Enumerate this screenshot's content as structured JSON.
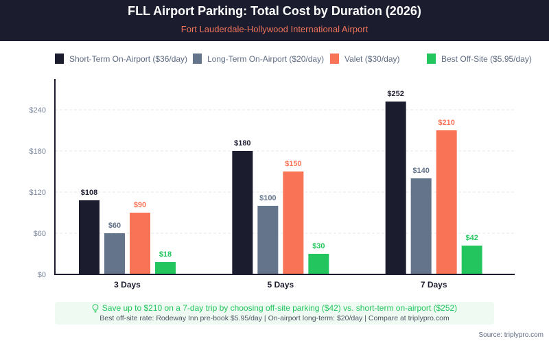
{
  "header": {
    "title": "FLL Airport Parking: Total Cost by Duration (2026)",
    "subtitle": "Fort Lauderdale-Hollywood International Airport"
  },
  "legend": [
    {
      "label": "Short-Term On-Airport ($36/day)",
      "color": "#1b1c2e"
    },
    {
      "label": "Long-Term On-Airport ($20/day)",
      "color": "#64748b"
    },
    {
      "label": "Valet ($30/day)",
      "color": "#f97356"
    },
    {
      "label": "Best Off-Site ($5.95/day)",
      "color": "#22c55e"
    }
  ],
  "chart_data": {
    "type": "bar",
    "title": "FLL Airport Parking: Total Cost by Duration (2026)",
    "subtitle": "Fort Lauderdale-Hollywood International Airport",
    "xlabel": "",
    "ylabel": "",
    "categories": [
      "3 Days",
      "5 Days",
      "7 Days"
    ],
    "series": [
      {
        "name": "Short-Term On-Airport ($36/day)",
        "color": "#1b1c2e",
        "label_color": "#1b1c2e",
        "values": [
          108,
          180,
          252
        ],
        "labels": [
          "$108",
          "$180",
          "$252"
        ]
      },
      {
        "name": "Long-Term On-Airport ($20/day)",
        "color": "#64748b",
        "label_color": "#64748b",
        "values": [
          60,
          100,
          140
        ],
        "labels": [
          "$60",
          "$100",
          "$140"
        ]
      },
      {
        "name": "Valet ($30/day)",
        "color": "#f97356",
        "label_color": "#f97356",
        "values": [
          90,
          150,
          210
        ],
        "labels": [
          "$90",
          "$150",
          "$210"
        ]
      },
      {
        "name": "Best Off-Site ($5.95/day)",
        "color": "#22c55e",
        "label_color": "#22c55e",
        "values": [
          18,
          30,
          42
        ],
        "labels": [
          "$18",
          "$30",
          "$42"
        ]
      }
    ],
    "yticks": [
      0,
      60,
      120,
      180,
      240
    ],
    "ytick_labels": [
      "$0",
      "$60",
      "$120",
      "$180",
      "$240"
    ],
    "ylim": [
      0,
      285
    ],
    "grid": true,
    "legend_position": "top"
  },
  "footer": {
    "icon": "lightbulb-icon",
    "main": "Save up to $210 on a 7-day trip by choosing off-site parking ($42) vs. short-term on-airport ($252)",
    "sub": "Best off-site rate: Rodeway Inn pre-book $5.95/day | On-airport long-term: $20/day | Compare at triplypro.com"
  },
  "source": "Source: triplypro.com"
}
